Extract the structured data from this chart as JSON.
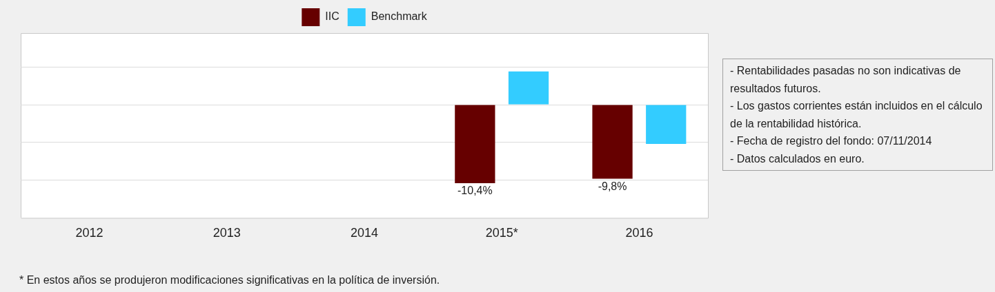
{
  "chart_data": {
    "type": "bar",
    "categories": [
      "2012",
      "2013",
      "2014",
      "2015*",
      "2016"
    ],
    "series": [
      {
        "name": "IIC",
        "color": "#660000",
        "values": [
          null,
          null,
          null,
          -10.4,
          -9.8
        ],
        "value_labels": [
          null,
          null,
          null,
          "-10,4%",
          "-9,8%"
        ]
      },
      {
        "name": "Benchmark",
        "color": "#33ccff",
        "values": [
          null,
          null,
          null,
          4.4,
          -5.2
        ]
      }
    ],
    "ylim": [
      -15,
      9.5
    ],
    "yticks": [
      {
        "value": -15,
        "label": null
      },
      {
        "value": -10,
        "label": null
      },
      {
        "value": -5,
        "label": null
      },
      {
        "value": 0,
        "label": null
      },
      {
        "value": 5,
        "label": null
      }
    ],
    "tick_labels": "x",
    "grid": "y",
    "legend": "top",
    "annotations": [
      "- Rentabilidades pasadas no son indicativas de resultados futuros.",
      "- Los gastos corrientes están incluidos en el cálculo de la rentabilidad histórica.",
      "- Fecha de registro del fondo: 07/11/2014",
      "- Datos calculados en euro.",
      "* En estos años se produjeron modificaciones significativas en la política de inversión."
    ]
  }
}
